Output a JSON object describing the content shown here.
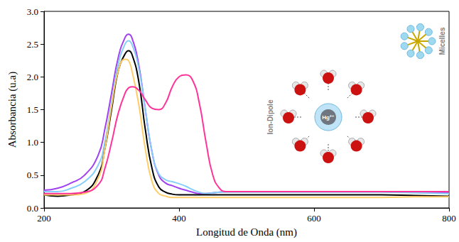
{
  "chart_data": {
    "type": "line",
    "x_label": "Longitud de Onda (nm)",
    "y_label": "Absorbancia (u.a)",
    "x": [
      200,
      220,
      240,
      260,
      280,
      290,
      300,
      310,
      320,
      325,
      330,
      340,
      350,
      360,
      370,
      380,
      390,
      400,
      410,
      420,
      430,
      440,
      450,
      460,
      470,
      480,
      500,
      550,
      600,
      650,
      700,
      750,
      800
    ],
    "series": [
      {
        "color": "#a040f0",
        "values": [
          0.27,
          0.3,
          0.38,
          0.5,
          0.8,
          1.2,
          1.75,
          2.3,
          2.6,
          2.65,
          2.6,
          2.2,
          1.5,
          0.85,
          0.5,
          0.38,
          0.34,
          0.3,
          0.27,
          0.24,
          0.22,
          0.22,
          0.23,
          0.24,
          0.25,
          0.25,
          0.25,
          0.25,
          0.25,
          0.25,
          0.25,
          0.24,
          0.23
        ]
      },
      {
        "color": "#87cefa",
        "values": [
          0.25,
          0.25,
          0.3,
          0.4,
          0.65,
          1.0,
          1.6,
          2.2,
          2.5,
          2.55,
          2.5,
          2.15,
          1.5,
          0.85,
          0.52,
          0.43,
          0.4,
          0.37,
          0.33,
          0.28,
          0.24,
          0.22,
          0.23,
          0.24,
          0.24,
          0.24,
          0.24,
          0.24,
          0.24,
          0.24,
          0.24,
          0.23,
          0.22
        ]
      },
      {
        "color": "#000000",
        "values": [
          0.2,
          0.18,
          0.2,
          0.25,
          0.5,
          0.9,
          1.5,
          2.1,
          2.35,
          2.4,
          2.35,
          1.95,
          1.2,
          0.6,
          0.32,
          0.24,
          0.21,
          0.2,
          0.2,
          0.2,
          0.2,
          0.2,
          0.2,
          0.2,
          0.2,
          0.2,
          0.2,
          0.2,
          0.2,
          0.2,
          0.2,
          0.19,
          0.18
        ]
      },
      {
        "color": "#ffcc66",
        "values": [
          0.2,
          0.2,
          0.2,
          0.22,
          0.45,
          0.9,
          1.55,
          2.1,
          2.27,
          2.25,
          2.1,
          1.6,
          0.9,
          0.4,
          0.22,
          0.18,
          0.16,
          0.16,
          0.16,
          0.16,
          0.16,
          0.16,
          0.16,
          0.16,
          0.16,
          0.16,
          0.16,
          0.16,
          0.16,
          0.16,
          0.16,
          0.17,
          0.17
        ]
      },
      {
        "color": "#ff3399",
        "values": [
          0.22,
          0.22,
          0.22,
          0.24,
          0.35,
          0.6,
          1.0,
          1.45,
          1.75,
          1.83,
          1.85,
          1.8,
          1.65,
          1.52,
          1.5,
          1.6,
          1.85,
          2.0,
          2.03,
          1.95,
          1.6,
          1.0,
          0.5,
          0.3,
          0.25,
          0.25,
          0.25,
          0.25,
          0.25,
          0.25,
          0.25,
          0.25,
          0.25
        ]
      }
    ],
    "xlim": [
      200,
      800
    ],
    "xticks": [
      200,
      400,
      600,
      800
    ],
    "ylim": [
      0,
      3
    ],
    "yticks": [
      {
        "value": 0,
        "label": "0.0"
      },
      {
        "value": 0.5,
        "label": "0.5"
      },
      {
        "value": 1,
        "label": "1.0"
      },
      {
        "value": 1.5,
        "label": "1.5"
      },
      {
        "value": 2,
        "label": "2.0"
      },
      {
        "value": 2.5,
        "label": "2.5"
      },
      {
        "value": 3,
        "label": "3.0"
      }
    ],
    "grid": false,
    "annotations": [
      "Ion-Dipole",
      "Hg²⁺",
      "Micelles"
    ]
  }
}
